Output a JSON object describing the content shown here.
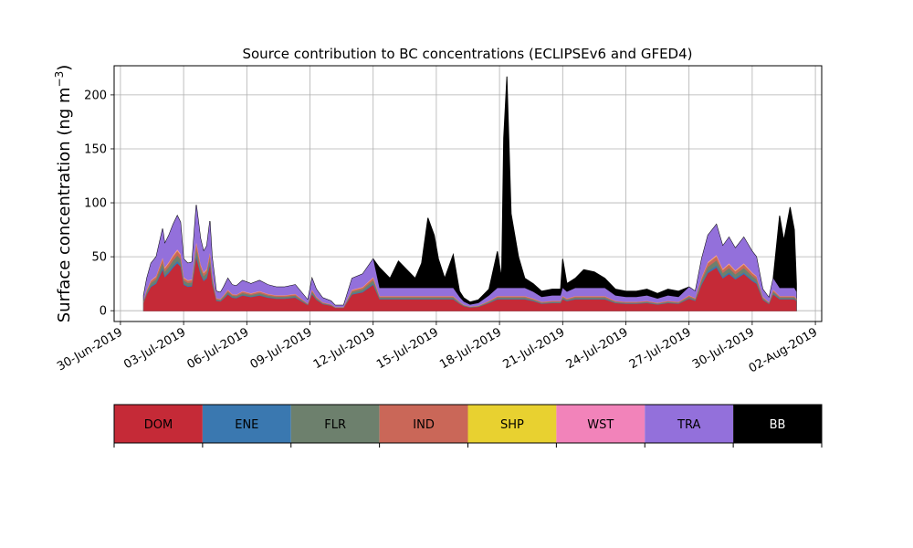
{
  "chart_data": {
    "type": "area",
    "stacked": true,
    "title": "Source contribution to BC concentrations (ECLIPSEv6 and GFED4)",
    "ylabel_main": "Surface concentration (ng m",
    "ylabel_exp": "−3",
    "ylabel_close": ")",
    "xlabel": "",
    "grid": true,
    "ylim": [
      -10,
      227
    ],
    "yticks": [
      0,
      50,
      100,
      150,
      200
    ],
    "xlim_days": [
      -0.3,
      33.3
    ],
    "xticks": [
      {
        "day": 0,
        "label": "30-Jun-2019"
      },
      {
        "day": 3,
        "label": "03-Jul-2019"
      },
      {
        "day": 6,
        "label": "06-Jul-2019"
      },
      {
        "day": 9,
        "label": "09-Jul-2019"
      },
      {
        "day": 12,
        "label": "12-Jul-2019"
      },
      {
        "day": 15,
        "label": "15-Jul-2019"
      },
      {
        "day": 18,
        "label": "18-Jul-2019"
      },
      {
        "day": 21,
        "label": "21-Jul-2019"
      },
      {
        "day": 24,
        "label": "24-Jul-2019"
      },
      {
        "day": 27,
        "label": "27-Jul-2019"
      },
      {
        "day": 30,
        "label": "30-Jul-2019"
      },
      {
        "day": 33,
        "label": "02-Aug-2019"
      }
    ],
    "total_profile_days": [
      1.1,
      1.25,
      1.45,
      1.7,
      2.0,
      2.1,
      2.3,
      2.5,
      2.7,
      2.85,
      3.0,
      3.2,
      3.4,
      3.6,
      3.8,
      3.95,
      4.1,
      4.25,
      4.35,
      4.55,
      4.75,
      4.9,
      5.1,
      5.3,
      5.5,
      5.8,
      6.2,
      6.6,
      7.0,
      7.4,
      7.8,
      8.3,
      8.9,
      9.1,
      9.3,
      9.6,
      10.0,
      10.2,
      10.6,
      11.0,
      11.5,
      12.0,
      12.3,
      12.8,
      13.2,
      13.6,
      14.0,
      14.3,
      14.6,
      14.9,
      15.1,
      15.4,
      15.8,
      16.1,
      16.3,
      16.6,
      17.0,
      17.5,
      17.9,
      18.1,
      18.2,
      18.35,
      18.55,
      18.9,
      19.2,
      19.6,
      20.0,
      20.5,
      20.9,
      21.0,
      21.2,
      21.6,
      22.0,
      22.5,
      23.0,
      23.5,
      24.0,
      24.5,
      25.0,
      25.5,
      26.0,
      26.5,
      27.0,
      27.3,
      27.6,
      27.9,
      28.3,
      28.6,
      28.9,
      29.2,
      29.6,
      30.0,
      30.2,
      30.5,
      30.8,
      31.0,
      31.3,
      31.5,
      31.8,
      32.0,
      32.1
    ],
    "total_profile_values": [
      14,
      30,
      44,
      50,
      76,
      62,
      70,
      80,
      88,
      82,
      48,
      44,
      45,
      98,
      67,
      55,
      60,
      83,
      50,
      18,
      17,
      22,
      30,
      24,
      23,
      28,
      25,
      28,
      24,
      22,
      22,
      24,
      10,
      30,
      20,
      12,
      9,
      5,
      5,
      30,
      34,
      48,
      40,
      30,
      46,
      38,
      30,
      44,
      86,
      70,
      48,
      30,
      52,
      18,
      12,
      8,
      10,
      20,
      55,
      30,
      160,
      217,
      90,
      50,
      30,
      25,
      18,
      20,
      20,
      48,
      25,
      30,
      38,
      36,
      30,
      20,
      18,
      18,
      20,
      16,
      20,
      18,
      22,
      18,
      48,
      70,
      80,
      60,
      68,
      58,
      68,
      55,
      50,
      20,
      12,
      30,
      88,
      65,
      96,
      75,
      25
    ],
    "total_profile_valley_days": [
      1.0,
      1.15,
      1.35,
      1.6,
      1.9,
      2.05,
      2.2,
      2.4,
      2.6,
      2.8,
      2.95,
      3.1,
      3.3,
      3.5,
      3.7,
      3.9,
      4.05,
      4.2,
      4.3,
      4.5,
      4.7,
      4.85,
      5.05,
      5.25,
      5.45,
      5.75,
      6.15,
      6.55,
      6.95,
      7.35,
      7.75,
      8.25,
      8.85,
      9.05,
      9.25,
      9.55,
      9.95,
      10.15,
      10.55,
      10.95,
      11.45,
      11.95,
      12.25,
      12.75,
      13.15,
      13.55,
      13.95,
      14.25,
      14.55,
      14.85,
      15.05,
      15.35,
      15.75,
      16.05,
      16.25,
      16.55,
      16.95,
      17.45,
      17.85,
      18.05,
      18.15,
      18.3,
      18.5,
      18.85,
      19.15,
      19.55,
      19.95,
      20.45,
      20.85,
      20.95,
      21.15,
      21.55,
      21.95,
      22.45,
      22.95,
      23.45,
      23.95,
      24.45,
      24.95,
      25.45,
      25.95,
      26.45,
      26.95,
      27.25,
      27.55,
      27.85,
      28.25,
      28.55,
      28.85,
      29.15,
      29.55,
      29.95,
      30.15,
      30.45,
      30.75,
      30.95,
      31.25,
      31.45,
      31.75,
      31.95,
      32.05
    ],
    "series": [
      {
        "name": "DOM",
        "color": "#c52a37",
        "fraction": 0.42
      },
      {
        "name": "ENE",
        "color": "#3a78b0",
        "fraction": 0.02
      },
      {
        "name": "FLR",
        "color": "#6d806d",
        "fraction": 0.05
      },
      {
        "name": "IND",
        "color": "#ca6758",
        "fraction": 0.04
      },
      {
        "name": "SHP",
        "color": "#e8d130",
        "fraction": 0.005
      },
      {
        "name": "WST",
        "color": "#f283ba",
        "fraction": 0.01
      },
      {
        "name": "TRA",
        "color": "#9370db",
        "fraction": 0.3
      },
      {
        "name": "BB",
        "color": "#000000",
        "fraction": 0.155
      }
    ],
    "fossil_share_notes": "",
    "legend_placement": "bottom colorbar"
  }
}
